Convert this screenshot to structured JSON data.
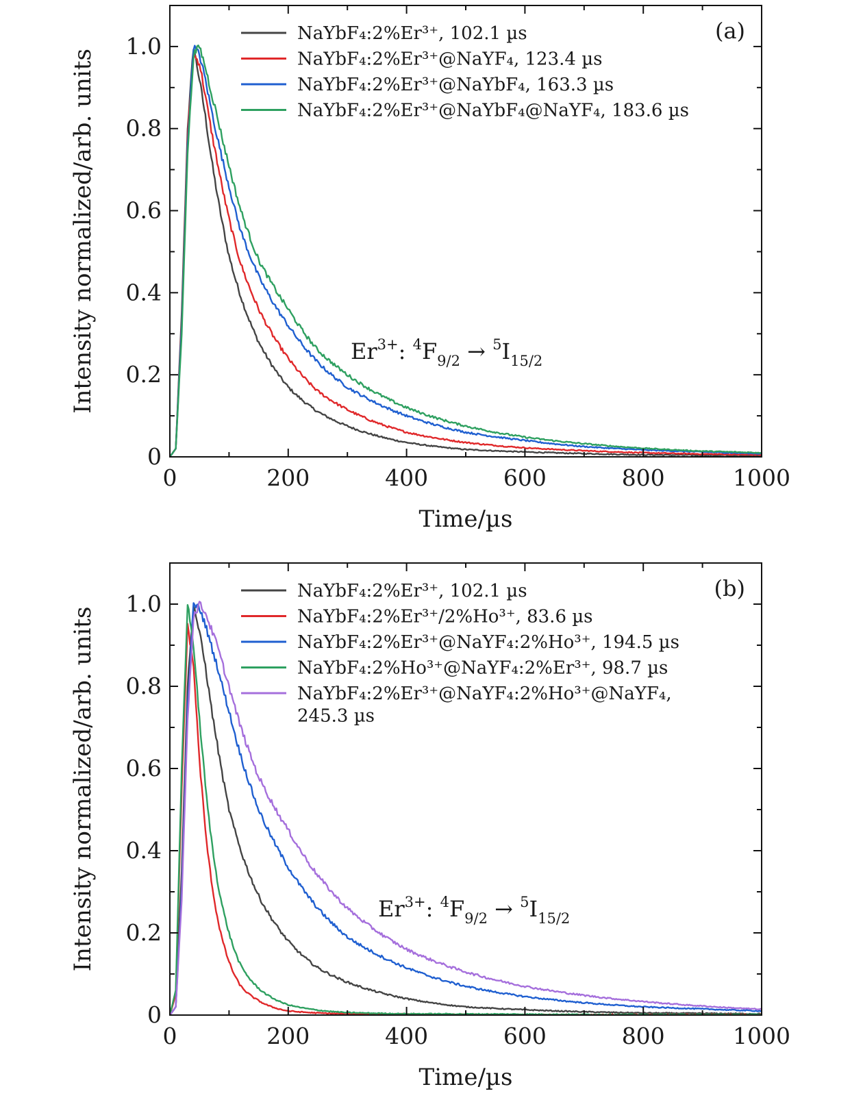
{
  "panels": [
    {
      "tag": "(a)",
      "annotation": {
        "species": "Er",
        "charge": "3+",
        "from_state_sup": "4",
        "from_state": "F",
        "from_sub": "9/2",
        "arrow": "→",
        "to_state_sup": "5",
        "to_state": "I",
        "to_sub": "15/2"
      },
      "legend": [
        {
          "color": "#444444",
          "label": "NaYbF₄:2%Er³⁺, 102.1 µs"
        },
        {
          "color": "#e0282a",
          "label": "NaYbF₄:2%Er³⁺@NaYF₄, 123.4 µs"
        },
        {
          "color": "#1f5fd0",
          "label": "NaYbF₄:2%Er³⁺@NaYbF₄, 163.3 µs"
        },
        {
          "color": "#2ea060",
          "label": "NaYbF₄:2%Er³⁺@NaYbF₄@NaYF₄, 183.6 µs"
        }
      ]
    },
    {
      "tag": "(b)",
      "annotation": {
        "species": "Er",
        "charge": "3+",
        "from_state_sup": "4",
        "from_state": "F",
        "from_sub": "9/2",
        "arrow": "→",
        "to_state_sup": "5",
        "to_state": "I",
        "to_sub": "15/2"
      },
      "legend": [
        {
          "color": "#444444",
          "label": "NaYbF₄:2%Er³⁺, 102.1 µs"
        },
        {
          "color": "#e0282a",
          "label": "NaYbF₄:2%Er³⁺/2%Ho³⁺, 83.6  µs"
        },
        {
          "color": "#1f5fd0",
          "label": "NaYbF₄:2%Er³⁺@NaYF₄:2%Ho³⁺, 194.5 µs"
        },
        {
          "color": "#2ea060",
          "label": "NaYbF₄:2%Ho³⁺@NaYF₄:2%Er³⁺, 98.7  µs"
        },
        {
          "color": "#a56fdc",
          "label": "NaYbF₄:2%Er³⁺@NaYF₄:2%Ho³⁺@NaYF₄,",
          "label2": "245.3 µs"
        }
      ]
    }
  ],
  "chart_data": [
    {
      "type": "line",
      "xlabel": "Time/µs",
      "ylabel": "Intensity normalized/arb. units",
      "xlim": [
        0,
        1000
      ],
      "ylim": [
        0,
        1.1
      ],
      "x_ticks": [
        0,
        200,
        400,
        600,
        800,
        1000
      ],
      "y_ticks": [
        0,
        0.2,
        0.4,
        0.6,
        0.8,
        1.0
      ],
      "y_tick_labels": [
        "0",
        "0.2",
        "0.4",
        "0.6",
        "0.8",
        "1.0"
      ],
      "x_tick_labels": [
        "0",
        "200",
        "400",
        "600",
        "800",
        "1000"
      ],
      "series": [
        {
          "name": "NaYbF₄:2%Er³⁺, 102.1 µs",
          "color": "#444444",
          "x": [
            0,
            10,
            20,
            30,
            40,
            50,
            60,
            80,
            100,
            120,
            150,
            200,
            250,
            300,
            400,
            500,
            600,
            700,
            800,
            900,
            1000
          ],
          "y": [
            0,
            0.02,
            0.35,
            0.8,
            1.0,
            0.92,
            0.83,
            0.64,
            0.49,
            0.39,
            0.28,
            0.17,
            0.11,
            0.075,
            0.035,
            0.018,
            0.012,
            0.008,
            0.005,
            0.004,
            0.003
          ]
        },
        {
          "name": "NaYbF₄:2%Er³⁺@NaYF₄, 123.4 µs",
          "color": "#e0282a",
          "x": [
            0,
            10,
            20,
            30,
            40,
            50,
            60,
            80,
            100,
            120,
            150,
            200,
            250,
            300,
            400,
            500,
            600,
            700,
            800,
            900,
            1000
          ],
          "y": [
            0,
            0.02,
            0.33,
            0.78,
            0.98,
            0.96,
            0.88,
            0.72,
            0.58,
            0.47,
            0.36,
            0.24,
            0.16,
            0.115,
            0.06,
            0.035,
            0.022,
            0.015,
            0.01,
            0.007,
            0.005
          ]
        },
        {
          "name": "NaYbF₄:2%Er³⁺@NaYbF₄, 163.3 µs",
          "color": "#1f5fd0",
          "x": [
            0,
            10,
            20,
            30,
            40,
            50,
            60,
            80,
            100,
            120,
            150,
            200,
            250,
            300,
            400,
            500,
            600,
            700,
            800,
            900,
            1000
          ],
          "y": [
            0,
            0.02,
            0.32,
            0.76,
            1.0,
            0.98,
            0.92,
            0.78,
            0.66,
            0.55,
            0.44,
            0.32,
            0.23,
            0.17,
            0.1,
            0.06,
            0.04,
            0.025,
            0.017,
            0.012,
            0.008
          ]
        },
        {
          "name": "NaYbF₄:2%Er³⁺@NaYbF₄@NaYF₄, 183.6 µs",
          "color": "#2ea060",
          "x": [
            0,
            10,
            20,
            30,
            40,
            50,
            60,
            80,
            100,
            120,
            150,
            200,
            250,
            300,
            400,
            500,
            600,
            700,
            800,
            900,
            1000
          ],
          "y": [
            0,
            0.02,
            0.3,
            0.74,
            0.98,
            1.0,
            0.95,
            0.83,
            0.71,
            0.6,
            0.48,
            0.36,
            0.26,
            0.2,
            0.12,
            0.075,
            0.048,
            0.032,
            0.021,
            0.014,
            0.01
          ]
        }
      ]
    },
    {
      "type": "line",
      "xlabel": "Time/µs",
      "ylabel": "Intensity normalized/arb. units",
      "xlim": [
        0,
        1000
      ],
      "ylim": [
        0,
        1.1
      ],
      "x_ticks": [
        0,
        200,
        400,
        600,
        800,
        1000
      ],
      "y_ticks": [
        0,
        0.2,
        0.4,
        0.6,
        0.8,
        1.0
      ],
      "y_tick_labels": [
        "0",
        "0.2",
        "0.4",
        "0.6",
        "0.8",
        "1.0"
      ],
      "x_tick_labels": [
        "0",
        "200",
        "400",
        "600",
        "800",
        "1000"
      ],
      "series": [
        {
          "name": "NaYbF₄:2%Er³⁺, 102.1 µs",
          "color": "#444444",
          "x": [
            0,
            10,
            20,
            30,
            40,
            50,
            60,
            80,
            100,
            120,
            150,
            200,
            250,
            300,
            400,
            500,
            600,
            700,
            800,
            900,
            1000
          ],
          "y": [
            0,
            0.02,
            0.35,
            0.8,
            1.0,
            0.93,
            0.85,
            0.66,
            0.5,
            0.4,
            0.29,
            0.18,
            0.115,
            0.08,
            0.04,
            0.02,
            0.013,
            0.008,
            0.005,
            0.004,
            0.003
          ]
        },
        {
          "name": "NaYbF₄:2%Er³⁺/2%Ho³⁺, 83.6  µs",
          "color": "#e0282a",
          "x": [
            0,
            10,
            20,
            30,
            40,
            50,
            60,
            70,
            80,
            100,
            120,
            150,
            200,
            250,
            300,
            400,
            600,
            800,
            1000
          ],
          "y": [
            0,
            0.05,
            0.55,
            0.95,
            0.85,
            0.62,
            0.45,
            0.33,
            0.24,
            0.13,
            0.07,
            0.035,
            0.01,
            0.005,
            0.003,
            0.002,
            0.001,
            0.001,
            0.001
          ]
        },
        {
          "name": "NaYbF₄:2%Er³⁺@NaYF₄:2%Ho³⁺, 194.5 µs",
          "color": "#1f5fd0",
          "x": [
            0,
            10,
            20,
            30,
            40,
            50,
            60,
            80,
            100,
            120,
            150,
            200,
            250,
            300,
            400,
            500,
            600,
            700,
            800,
            900,
            1000
          ],
          "y": [
            0,
            0.02,
            0.3,
            0.75,
            1.0,
            0.99,
            0.95,
            0.85,
            0.74,
            0.63,
            0.5,
            0.36,
            0.26,
            0.19,
            0.115,
            0.07,
            0.045,
            0.03,
            0.02,
            0.015,
            0.01
          ]
        },
        {
          "name": "NaYbF₄:2%Ho³⁺@NaYF₄:2%Er³⁺, 98.7  µs",
          "color": "#2ea060",
          "x": [
            0,
            10,
            20,
            30,
            40,
            50,
            60,
            70,
            80,
            100,
            120,
            150,
            200,
            250,
            300,
            400,
            600,
            800,
            1000
          ],
          "y": [
            0,
            0.06,
            0.6,
            1.0,
            0.9,
            0.72,
            0.56,
            0.43,
            0.33,
            0.2,
            0.12,
            0.065,
            0.025,
            0.012,
            0.006,
            0.003,
            0.002,
            0.001,
            0.001
          ]
        },
        {
          "name": "NaYbF₄:2%Er³⁺@NaYF₄:2%Ho³⁺@NaYF₄, 245.3 µs",
          "color": "#a56fdc",
          "x": [
            0,
            10,
            20,
            30,
            40,
            50,
            60,
            80,
            100,
            120,
            150,
            200,
            250,
            300,
            400,
            500,
            600,
            700,
            800,
            900,
            1000
          ],
          "y": [
            0,
            0.02,
            0.28,
            0.72,
            0.97,
            1.0,
            0.98,
            0.9,
            0.8,
            0.7,
            0.58,
            0.45,
            0.34,
            0.26,
            0.16,
            0.105,
            0.07,
            0.048,
            0.033,
            0.022,
            0.014
          ]
        }
      ]
    }
  ]
}
